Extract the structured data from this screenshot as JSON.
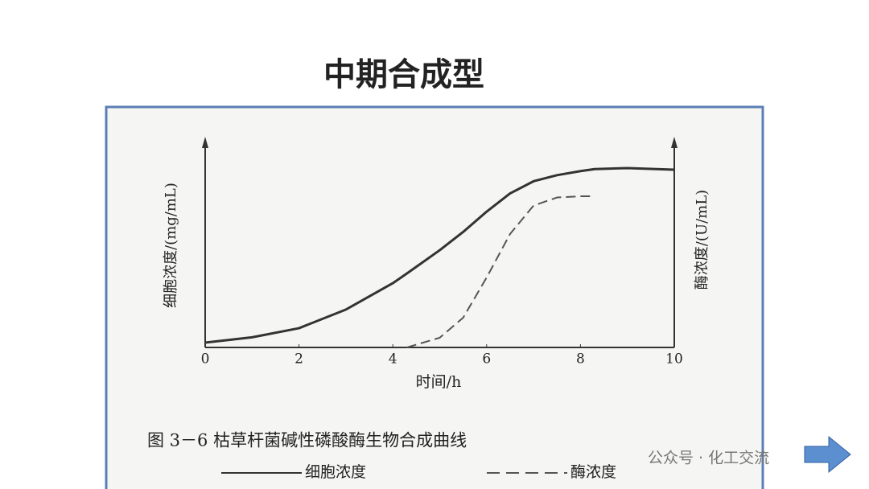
{
  "slide_title": "中期合成型",
  "watermark": "公众号 · 化工交流",
  "chart_data": {
    "type": "line",
    "ylabel": "细胞浓度/(mg/mL)",
    "y2label": "酶浓度/(U/mL)",
    "xlabel": "时间/h",
    "caption": "图 3－6   枯草杆菌碱性磷酸酶生物合成曲线",
    "x": [
      0,
      1,
      2,
      3,
      4,
      4.3,
      5,
      5.5,
      6,
      6.5,
      7,
      7.5,
      8,
      8.3,
      9,
      10
    ],
    "xlim": [
      0,
      10
    ],
    "xticks": [
      0,
      2,
      4,
      6,
      8,
      10
    ],
    "ylim": [
      0,
      100
    ],
    "series": [
      {
        "name": "细胞浓度",
        "color": "#333333",
        "dash": false,
        "values": [
          2.4,
          5,
          9.5,
          18.7,
          31.7,
          36.5,
          48,
          57,
          67,
          76,
          82,
          85,
          87,
          88,
          88.5,
          87.7
        ]
      },
      {
        "name": "酶浓度",
        "color": "#555555",
        "dash": true,
        "values": [
          null,
          null,
          null,
          null,
          null,
          0,
          4.8,
          14.7,
          34.5,
          56,
          70,
          74,
          74.6,
          74.6,
          null,
          null
        ]
      }
    ]
  }
}
